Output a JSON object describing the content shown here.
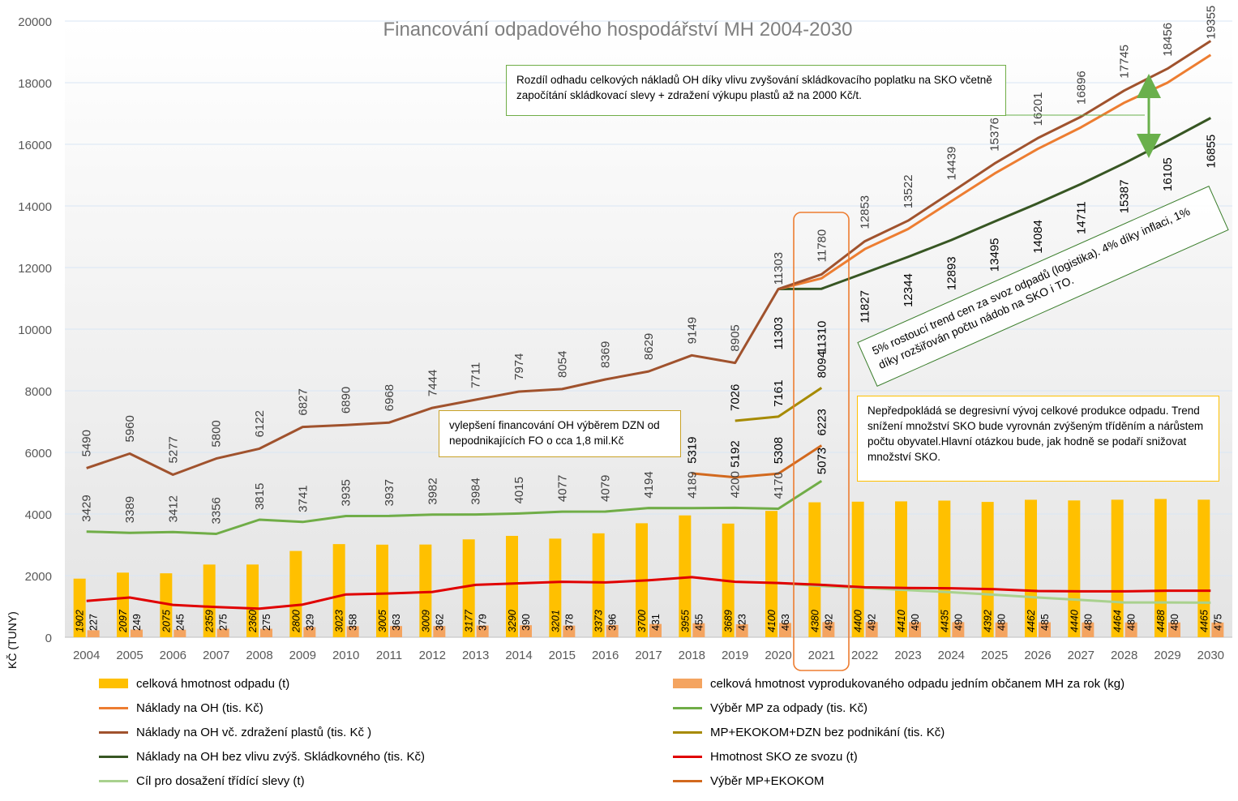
{
  "chart_data": {
    "type": "bar+line",
    "title": "Financování odpadového hospodářství MH 2004-2030",
    "ylabel": "KČ (TUNY)",
    "ylim": [
      0,
      20000
    ],
    "yticks": [
      0,
      2000,
      4000,
      6000,
      8000,
      10000,
      12000,
      14000,
      16000,
      18000,
      20000
    ],
    "grid": true,
    "legend_position": "bottom",
    "categories": [
      "2004",
      "2005",
      "2006",
      "2007",
      "2008",
      "2009",
      "2010",
      "2011",
      "2012",
      "2013",
      "2014",
      "2015",
      "2016",
      "2017",
      "2018",
      "2019",
      "2020",
      "2021",
      "2022",
      "2023",
      "2024",
      "2025",
      "2026",
      "2027",
      "2028",
      "2029",
      "2030"
    ],
    "bars": [
      {
        "name": "celková hmotnost odpadu (t)",
        "color": "#FFC000",
        "values": [
          1902,
          2097,
          2075,
          2359,
          2360,
          2800,
          3023,
          3005,
          3009,
          3177,
          3290,
          3201,
          3373,
          3700,
          3955,
          3689,
          4100,
          4380,
          4400,
          4410,
          4435,
          4392,
          4462,
          4440,
          4464,
          4488,
          4465
        ]
      },
      {
        "name": "celková hmotnost vyprodukovaného odpadu jedním občanem MH za rok (kg)",
        "color": "#F4A460",
        "values": [
          227,
          249,
          245,
          275,
          275,
          329,
          358,
          363,
          362,
          379,
          390,
          378,
          396,
          431,
          455,
          423,
          463,
          492,
          492,
          490,
          490,
          480,
          485,
          480,
          480,
          480,
          475
        ]
      }
    ],
    "series": [
      {
        "name": "Náklady na OH (tis. Kč)",
        "color": "#ED7D31",
        "values": [
          null,
          null,
          null,
          null,
          null,
          null,
          null,
          null,
          null,
          null,
          null,
          null,
          null,
          null,
          null,
          null,
          11303,
          11650,
          12600,
          13250,
          14150,
          15050,
          15850,
          16550,
          17350,
          18000,
          18900
        ]
      },
      {
        "name": "Výběr MP za odpady (tis. Kč)",
        "color": "#70AD47",
        "values": [
          3429,
          3389,
          3412,
          3356,
          3815,
          3741,
          3935,
          3937,
          3982,
          3984,
          4015,
          4077,
          4079,
          4194,
          4189,
          4200,
          4170,
          5073,
          null,
          null,
          null,
          null,
          null,
          null,
          null,
          null,
          null
        ]
      },
      {
        "name": "Náklady na OH vč. zdražení plastů (tis. Kč )",
        "color": "#A0522D",
        "values": [
          5490,
          5960,
          5277,
          5800,
          6122,
          6827,
          6890,
          6968,
          7444,
          7711,
          7974,
          8054,
          8369,
          8629,
          9149,
          8905,
          11303,
          11780,
          12853,
          13522,
          14439,
          15376,
          16201,
          16896,
          17745,
          18456,
          19355
        ]
      },
      {
        "name": "MP+EKOKOM+DZN bez podnikání (tis. Kč)",
        "color": "#A68A00",
        "values": [
          null,
          null,
          null,
          null,
          null,
          null,
          null,
          null,
          null,
          null,
          null,
          null,
          null,
          null,
          null,
          7026,
          7161,
          8094,
          null,
          null,
          null,
          null,
          null,
          null,
          null,
          null,
          null
        ]
      },
      {
        "name": "Náklady na OH bez vlivu zvýš. Skládkovného (tis. Kč)",
        "color": "#375623",
        "values": [
          null,
          null,
          null,
          null,
          null,
          null,
          null,
          null,
          null,
          null,
          null,
          null,
          null,
          null,
          null,
          null,
          11303,
          11310,
          11827,
          12344,
          12893,
          13495,
          14084,
          14711,
          15387,
          16105,
          16855
        ]
      },
      {
        "name": "Hmotnost SKO ze svozu (t)",
        "color": "#E00000",
        "values": [
          1180,
          1290,
          1050,
          980,
          930,
          1060,
          1390,
          1420,
          1470,
          1700,
          1750,
          1800,
          1780,
          1850,
          1950,
          1800,
          1760,
          1700,
          1620,
          1600,
          1590,
          1560,
          1500,
          1490,
          1490,
          1510,
          1510
        ]
      },
      {
        "name": "Cíl pro dosažení třídící slevy (t)",
        "color": "#A9D18E",
        "values": [
          null,
          null,
          null,
          null,
          null,
          null,
          null,
          null,
          null,
          null,
          null,
          null,
          null,
          null,
          null,
          null,
          1760,
          1660,
          1600,
          1530,
          1460,
          1380,
          1290,
          1210,
          1130,
          1130,
          1120
        ]
      },
      {
        "name": "Výběr MP+EKOKOM",
        "color": "#D2691E",
        "values": [
          null,
          null,
          null,
          null,
          null,
          null,
          null,
          null,
          null,
          null,
          null,
          null,
          null,
          null,
          5319,
          5192,
          5308,
          6223,
          null,
          null,
          null,
          null,
          null,
          null,
          null,
          null,
          null
        ]
      }
    ],
    "annotations": {
      "top_note": "Rozdíl odhadu celkových nákladů OH díky vlivu zvyšování skládkovacího poplatku na SKO včetně započítání skládkovací slevy + zdražení výkupu plastů až na 2000 Kč/t.",
      "dzn_note": "vylepšení financování OH výběrem DZN od nepodnikajících FO o cca 1,8 mil.Kč",
      "trend_note": "5% rostoucí trend cen za svoz odpadů (logistika). 4% díky inflaci, 1% díky rozšiřován počtu nádob na SKO i TO.",
      "production_note": "Nepředpokládá se degresivní vývoj celkové produkce odpadu. Trend snížení množství SKO bude vyrovnán zvýšeným tříděním a nárůstem počtu obyvatel.Hlavní otázkou bude, jak hodně se podaří snižovat množství SKO."
    }
  }
}
